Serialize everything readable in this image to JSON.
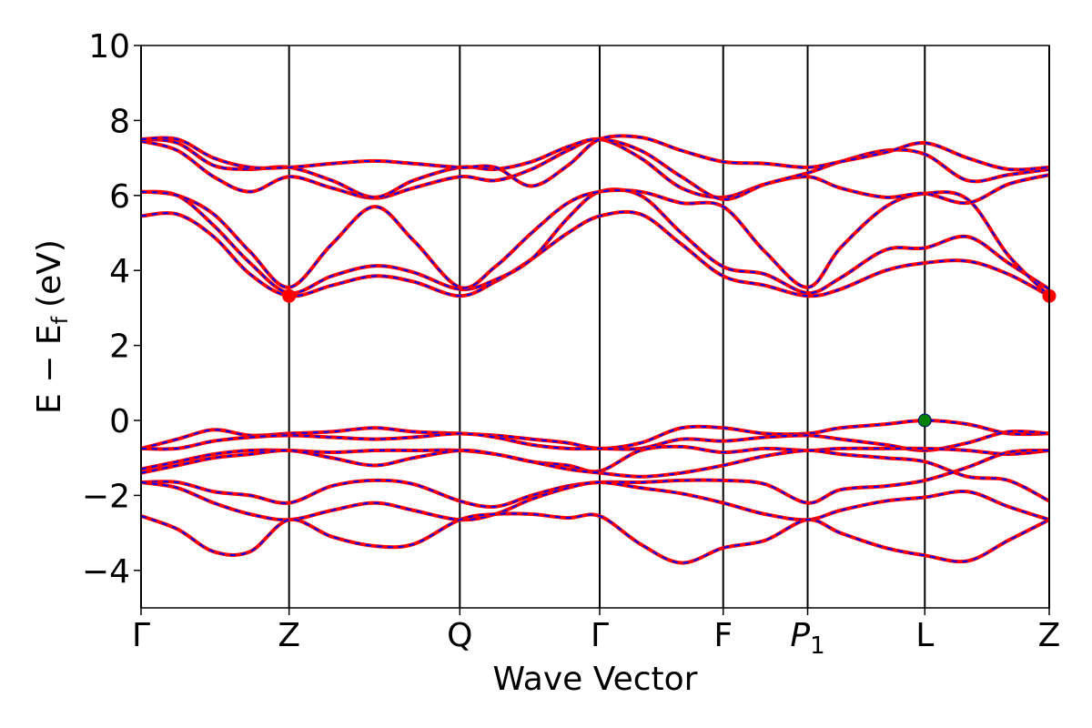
{
  "chart_data": {
    "type": "line",
    "xlabel": "Wave Vector",
    "ylabel": {
      "main": "E − E",
      "sub": "f",
      "unit": "(eV)"
    },
    "xlim": [
      0,
      1
    ],
    "ylim": [
      -5,
      10
    ],
    "xticks": [
      {
        "value": 0,
        "label": "Γ"
      },
      {
        "value": 0.163,
        "label": "Z"
      },
      {
        "value": 0.351,
        "label": "Q"
      },
      {
        "value": 0.505,
        "label": "Γ"
      },
      {
        "value": 0.641,
        "label": "F"
      },
      {
        "value": 0.734,
        "label": "P",
        "sub": "1"
      },
      {
        "value": 0.863,
        "label": "L"
      },
      {
        "value": 1,
        "label": "Z"
      }
    ],
    "yticks": [
      {
        "value": -4,
        "label": "−4"
      },
      {
        "value": -2,
        "label": "−2"
      },
      0,
      2,
      4,
      6,
      8,
      10
    ],
    "vertical_lines": true,
    "line_color": "#ff0000",
    "dash_color": "#0000ff",
    "x": [
      0,
      0.04,
      0.08,
      0.12,
      0.163,
      0.21,
      0.257,
      0.3,
      0.351,
      0.39,
      0.43,
      0.47,
      0.505,
      0.55,
      0.595,
      0.641,
      0.687,
      0.734,
      0.77,
      0.82,
      0.863,
      0.91,
      0.955,
      1
    ],
    "series": [
      {
        "values": [
          5.45,
          5.5,
          4.9,
          3.9,
          3.32,
          3.6,
          3.85,
          3.7,
          3.32,
          3.7,
          4.3,
          5.0,
          5.45,
          5.5,
          4.7,
          3.85,
          3.6,
          3.32,
          3.5,
          4.0,
          4.2,
          4.25,
          3.9,
          3.32
        ]
      },
      {
        "values": [
          6.1,
          6.0,
          5.2,
          4.2,
          3.4,
          3.85,
          4.12,
          3.95,
          3.5,
          3.75,
          4.3,
          5.4,
          6.1,
          6.0,
          5.0,
          4.1,
          3.9,
          3.4,
          3.8,
          4.55,
          4.6,
          4.9,
          4.2,
          3.5
        ]
      },
      {
        "values": [
          6.1,
          6.0,
          5.5,
          4.5,
          3.55,
          4.7,
          5.7,
          4.8,
          3.55,
          4.1,
          5.0,
          5.8,
          6.1,
          6.1,
          5.8,
          5.7,
          4.5,
          3.55,
          4.6,
          5.7,
          6.05,
          5.9,
          4.4,
          3.32
        ]
      },
      {
        "values": [
          7.45,
          7.2,
          6.5,
          6.1,
          6.5,
          6.2,
          5.93,
          6.2,
          6.5,
          6.4,
          6.7,
          7.2,
          7.5,
          7.0,
          6.2,
          5.95,
          6.3,
          6.5,
          6.2,
          5.95,
          6.05,
          5.8,
          6.3,
          6.55
        ]
      },
      {
        "values": [
          7.5,
          7.4,
          6.8,
          6.7,
          6.75,
          6.4,
          5.95,
          6.4,
          6.75,
          6.7,
          6.9,
          7.3,
          7.5,
          7.2,
          6.5,
          5.9,
          6.3,
          6.6,
          6.9,
          7.2,
          7.1,
          6.4,
          6.55,
          6.7
        ]
      },
      {
        "values": [
          7.5,
          7.5,
          7.0,
          6.75,
          6.75,
          6.85,
          6.92,
          6.85,
          6.75,
          6.75,
          6.25,
          6.8,
          7.5,
          7.55,
          7.2,
          6.9,
          6.85,
          6.75,
          6.9,
          7.15,
          7.4,
          7.0,
          6.7,
          6.75
        ]
      },
      {
        "values": [
          -0.75,
          -0.5,
          -0.25,
          -0.4,
          -0.35,
          -0.3,
          -0.2,
          -0.3,
          -0.35,
          -0.4,
          -0.5,
          -0.6,
          -0.75,
          -0.6,
          -0.2,
          -0.2,
          -0.35,
          -0.35,
          -0.2,
          -0.1,
          0,
          -0.1,
          -0.35,
          -0.35
        ]
      },
      {
        "values": [
          -0.75,
          -0.75,
          -0.55,
          -0.45,
          -0.4,
          -0.45,
          -0.5,
          -0.45,
          -0.35,
          -0.45,
          -0.65,
          -0.75,
          -0.75,
          -0.75,
          -0.5,
          -0.55,
          -0.45,
          -0.4,
          -0.5,
          -0.65,
          -0.8,
          -0.6,
          -0.3,
          -0.35
        ]
      },
      {
        "values": [
          -1.3,
          -1.1,
          -0.9,
          -0.8,
          -0.8,
          -0.85,
          -0.8,
          -0.8,
          -0.8,
          -0.9,
          -1.1,
          -1.2,
          -1.35,
          -0.8,
          -0.7,
          -0.85,
          -0.75,
          -0.8,
          -0.75,
          -0.75,
          -0.75,
          -0.8,
          -0.9,
          -0.8
        ]
      },
      {
        "values": [
          -1.4,
          -1.2,
          -1.0,
          -0.9,
          -0.8,
          -1.0,
          -1.2,
          -1.0,
          -0.8,
          -0.9,
          -1.1,
          -1.3,
          -1.4,
          -1.5,
          -1.4,
          -1.2,
          -0.95,
          -0.8,
          -0.9,
          -1.0,
          -1.1,
          -1.5,
          -1.6,
          -2.15
        ]
      },
      {
        "values": [
          -1.65,
          -1.65,
          -1.9,
          -2.0,
          -2.2,
          -1.75,
          -1.6,
          -1.7,
          -2.15,
          -2.3,
          -2.0,
          -1.75,
          -1.65,
          -1.65,
          -1.6,
          -1.6,
          -1.7,
          -2.2,
          -1.85,
          -1.75,
          -1.6,
          -1.25,
          -0.85,
          -0.8
        ]
      },
      {
        "values": [
          -1.65,
          -1.8,
          -2.2,
          -2.5,
          -2.65,
          -2.4,
          -2.2,
          -2.4,
          -2.65,
          -2.5,
          -2.1,
          -1.8,
          -1.65,
          -1.8,
          -1.95,
          -2.2,
          -2.5,
          -2.65,
          -2.4,
          -2.15,
          -2.05,
          -1.9,
          -2.3,
          -2.65
        ]
      },
      {
        "values": [
          -2.55,
          -2.9,
          -3.5,
          -3.5,
          -2.65,
          -3.1,
          -3.35,
          -3.3,
          -2.65,
          -2.5,
          -2.5,
          -2.6,
          -2.55,
          -3.3,
          -3.8,
          -3.4,
          -3.2,
          -2.65,
          -3.0,
          -3.4,
          -3.6,
          -3.75,
          -3.2,
          -2.65
        ]
      }
    ],
    "markers": [
      {
        "x": 0.163,
        "y": 3.32,
        "color": "#ff0000"
      },
      {
        "x": 1,
        "y": 3.32,
        "color": "#ff0000"
      },
      {
        "x": 0.863,
        "y": 0,
        "color": "#008000"
      }
    ]
  }
}
